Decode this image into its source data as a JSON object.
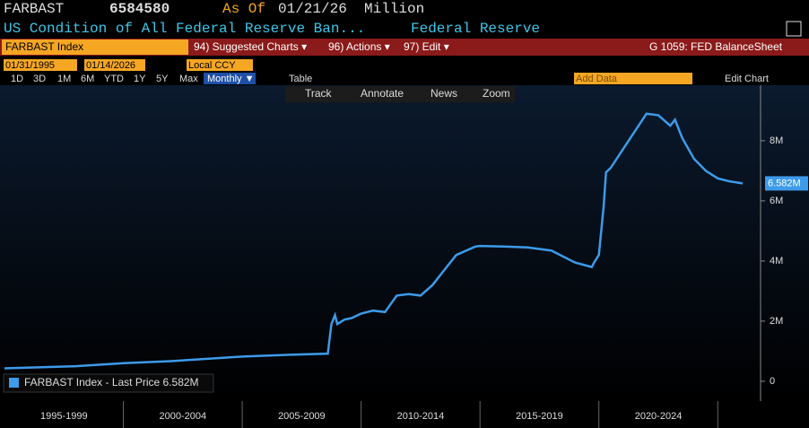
{
  "header": {
    "ticker": "FARBAST",
    "value": 6584580,
    "as_of_label": "As Of",
    "date": "01/21/26",
    "unit": "Million",
    "description": "US Condition of All Federal Reserve Ban...",
    "source": "Federal Reserve"
  },
  "toolbar": {
    "security": "FARBAST Index",
    "menus": [
      "94) Suggested Charts ▾",
      "96) Actions ▾",
      "97) Edit ▾"
    ],
    "chart_id": "G 1059: FED BalanceSheet",
    "start_date": "01/31/1995",
    "end_date": "01/14/2026",
    "currency": "Local CCY",
    "ranges": [
      "1D",
      "3D",
      "1M",
      "6M",
      "YTD",
      "1Y",
      "5Y",
      "Max"
    ],
    "frequency": "Monthly ▼",
    "table": "Table",
    "add_data": "Add Data",
    "edit_chart": "Edit Chart",
    "tools": [
      "Track",
      "Annotate",
      "News",
      "Zoom"
    ]
  },
  "chart_data": {
    "type": "line",
    "x": [
      1995,
      1998,
      2000,
      2002,
      2003,
      2005,
      2007,
      2008.6,
      2008.75,
      2008.9,
      2009,
      2009.3,
      2009.6,
      2010,
      2010.5,
      2011,
      2011.5,
      2012,
      2012.5,
      2013,
      2013.5,
      2014,
      2014.8,
      2015,
      2016,
      2017,
      2018,
      2019,
      2019.7,
      2019.8,
      2020,
      2020.2,
      2020.3,
      2020.5,
      2021,
      2021.5,
      2022,
      2022.5,
      2023,
      2023.2,
      2023.5,
      2024,
      2024.5,
      2025,
      2025.5,
      2026.05
    ],
    "series": [
      {
        "name": "FARBAST Index - Last Price 6.582M",
        "color": "#3d9be9",
        "values": [
          0.43,
          0.5,
          0.6,
          0.67,
          0.72,
          0.82,
          0.88,
          0.92,
          1.9,
          2.2,
          1.9,
          2.05,
          2.1,
          2.25,
          2.35,
          2.3,
          2.85,
          2.9,
          2.85,
          3.2,
          3.7,
          4.2,
          4.48,
          4.5,
          4.48,
          4.45,
          4.35,
          3.95,
          3.8,
          3.95,
          4.2,
          5.8,
          6.95,
          7.1,
          7.7,
          8.3,
          8.9,
          8.85,
          8.5,
          8.7,
          8.1,
          7.4,
          7.0,
          6.75,
          6.65,
          6.582
        ]
      }
    ],
    "last_price_label": "6.582M",
    "xlim": [
      1995,
      2026.8
    ],
    "ylim": [
      -0.6,
      9.25
    ],
    "yticks": [
      0,
      {
        "value": 2,
        "label": "2M"
      },
      {
        "value": 4,
        "label": "4M"
      },
      {
        "value": 6,
        "label": "6M"
      },
      {
        "value": 8,
        "label": "8M"
      }
    ],
    "xbands": [
      {
        "label": "1995-1999",
        "from": 1995,
        "to": 2000
      },
      {
        "label": "2000-2004",
        "from": 2000,
        "to": 2005
      },
      {
        "label": "2005-2009",
        "from": 2005,
        "to": 2010
      },
      {
        "label": "2010-2014",
        "from": 2010,
        "to": 2015
      },
      {
        "label": "2015-2019",
        "from": 2015,
        "to": 2020
      },
      {
        "label": "2020-2024",
        "from": 2020,
        "to": 2025
      }
    ],
    "grid": false
  }
}
